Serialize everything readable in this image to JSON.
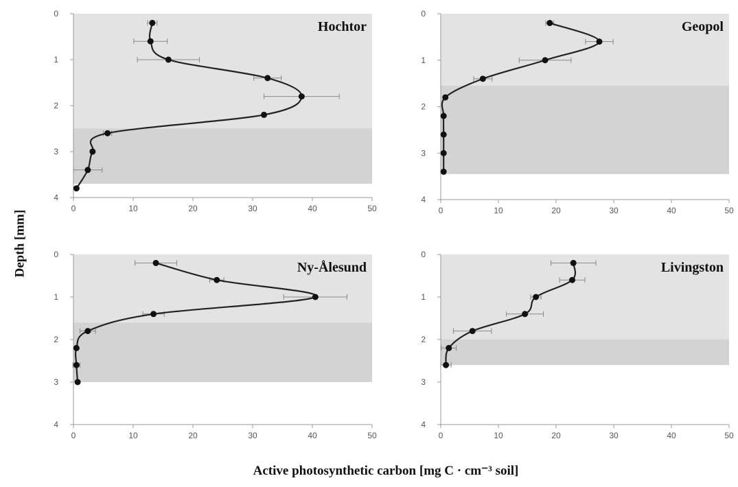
{
  "figure": {
    "ylabel": "Depth [mm]",
    "xlabel": "Active photosynthetic carbon  [mg C · cm⁻³ soil]"
  },
  "colors": {
    "band_light": "#e3e3e3",
    "band_dark": "#d3d3d3",
    "line": "#222222",
    "marker": "#111111",
    "errorbar": "#888888",
    "axis": "#9a9a9a"
  },
  "chart_data": [
    {
      "type": "line",
      "title": "Hochtor",
      "xlabel": "",
      "ylabel": "",
      "xlim": [
        0,
        50
      ],
      "ylim": [
        0,
        4
      ],
      "y_inverted": true,
      "x_ticks": [
        "0",
        "10",
        "20",
        "30",
        "40",
        "50"
      ],
      "y_ticks": [
        "0",
        "1",
        "2",
        "3",
        "4"
      ],
      "grid": false,
      "bands": [
        {
          "from_depth": 0,
          "to_depth": 2.5,
          "tone": "light"
        },
        {
          "from_depth": 2.5,
          "to_depth": 3.7,
          "tone": "dark"
        }
      ],
      "points": [
        {
          "x": 13.2,
          "y": 0.2,
          "err": 0.8
        },
        {
          "x": 12.9,
          "y": 0.6,
          "err": 2.8
        },
        {
          "x": 15.9,
          "y": 1.0,
          "err": 5.2
        },
        {
          "x": 32.5,
          "y": 1.4,
          "err": 2.3
        },
        {
          "x": 38.2,
          "y": 1.8,
          "err": 6.3
        },
        {
          "x": 31.9,
          "y": 2.2,
          "err": 0.3
        },
        {
          "x": 5.7,
          "y": 2.6,
          "err": 0.7
        },
        {
          "x": 3.2,
          "y": 3.0,
          "err": 0.3
        },
        {
          "x": 2.4,
          "y": 3.4,
          "err": 2.4
        },
        {
          "x": 0.5,
          "y": 3.8,
          "err": 0.1
        }
      ]
    },
    {
      "type": "line",
      "title": "Geopol",
      "xlabel": "",
      "ylabel": "",
      "xlim": [
        0,
        50
      ],
      "ylim": [
        0,
        4
      ],
      "y_inverted": true,
      "x_ticks": [
        "0",
        "10",
        "20",
        "30",
        "40",
        "50"
      ],
      "y_ticks": [
        "0",
        "1",
        "2",
        "3",
        "4"
      ],
      "grid": false,
      "bands": [
        {
          "from_depth": 0,
          "to_depth": 1.55,
          "tone": "light"
        },
        {
          "from_depth": 1.55,
          "to_depth": 3.45,
          "tone": "dark"
        }
      ],
      "points": [
        {
          "x": 18.9,
          "y": 0.2,
          "err": 0.7
        },
        {
          "x": 27.5,
          "y": 0.6,
          "err": 2.4
        },
        {
          "x": 18.1,
          "y": 1.0,
          "err": 4.5
        },
        {
          "x": 7.3,
          "y": 1.4,
          "err": 1.6
        },
        {
          "x": 0.8,
          "y": 1.8,
          "err": 0.2
        },
        {
          "x": 0.5,
          "y": 2.2,
          "err": 0.1
        },
        {
          "x": 0.5,
          "y": 2.6,
          "err": 0.1
        },
        {
          "x": 0.5,
          "y": 3.0,
          "err": 0.1
        },
        {
          "x": 0.5,
          "y": 3.4,
          "err": 0.1
        }
      ]
    },
    {
      "type": "line",
      "title": "Ny-Ålesund",
      "xlabel": "",
      "ylabel": "",
      "xlim": [
        0,
        50
      ],
      "ylim": [
        0,
        4
      ],
      "y_inverted": true,
      "x_ticks": [
        "0",
        "10",
        "20",
        "30",
        "40",
        "50"
      ],
      "y_ticks": [
        "0",
        "1",
        "2",
        "3",
        "4"
      ],
      "grid": false,
      "bands": [
        {
          "from_depth": 0,
          "to_depth": 1.6,
          "tone": "light"
        },
        {
          "from_depth": 1.6,
          "to_depth": 3.0,
          "tone": "dark"
        }
      ],
      "points": [
        {
          "x": 13.8,
          "y": 0.2,
          "err": 3.5
        },
        {
          "x": 24.0,
          "y": 0.6,
          "err": 1.2
        },
        {
          "x": 40.5,
          "y": 1.0,
          "err": 5.3
        },
        {
          "x": 13.4,
          "y": 1.4,
          "err": 1.8
        },
        {
          "x": 2.4,
          "y": 1.8,
          "err": 1.3
        },
        {
          "x": 0.5,
          "y": 2.2,
          "err": 0.1
        },
        {
          "x": 0.5,
          "y": 2.6,
          "err": 0.6
        },
        {
          "x": 0.7,
          "y": 3.0,
          "err": 0.1
        }
      ]
    },
    {
      "type": "line",
      "title": "Livingston",
      "xlabel": "",
      "ylabel": "",
      "xlim": [
        0,
        50
      ],
      "ylim": [
        0,
        4
      ],
      "y_inverted": true,
      "x_ticks": [
        "0",
        "10",
        "20",
        "30",
        "40",
        "50"
      ],
      "y_ticks": [
        "0",
        "1",
        "2",
        "3",
        "4"
      ],
      "grid": false,
      "bands": [
        {
          "from_depth": 0,
          "to_depth": 2.0,
          "tone": "light"
        },
        {
          "from_depth": 2.0,
          "to_depth": 2.6,
          "tone": "dark"
        }
      ],
      "points": [
        {
          "x": 23.0,
          "y": 0.2,
          "err": 3.9
        },
        {
          "x": 22.8,
          "y": 0.6,
          "err": 2.2
        },
        {
          "x": 16.5,
          "y": 1.0,
          "err": 0.9
        },
        {
          "x": 14.6,
          "y": 1.4,
          "err": 3.2
        },
        {
          "x": 5.5,
          "y": 1.8,
          "err": 3.3
        },
        {
          "x": 1.4,
          "y": 2.2,
          "err": 1.3
        },
        {
          "x": 0.9,
          "y": 2.6,
          "err": 0.9
        }
      ]
    }
  ]
}
